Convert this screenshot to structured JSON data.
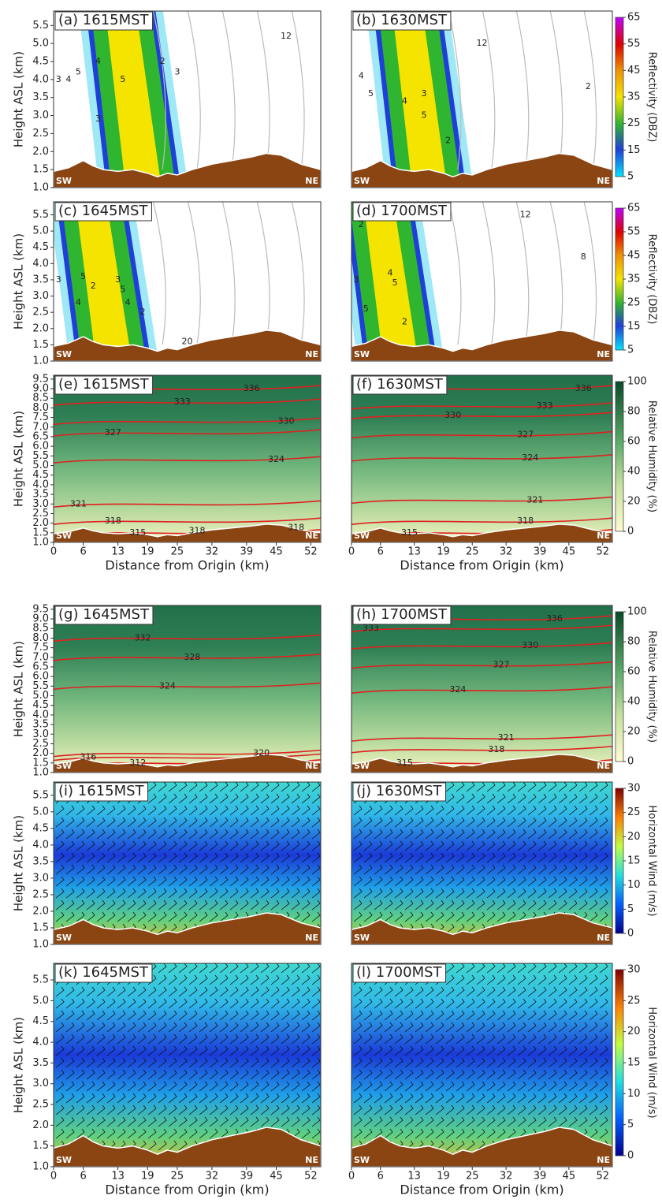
{
  "terrain": {
    "x": [
      0,
      3,
      6,
      8,
      10,
      13,
      16,
      19,
      21,
      23,
      25,
      28,
      32,
      36,
      40,
      43,
      46,
      50,
      54
    ],
    "y": [
      1.45,
      1.55,
      1.75,
      1.6,
      1.5,
      1.45,
      1.5,
      1.4,
      1.3,
      1.4,
      1.35,
      1.5,
      1.65,
      1.75,
      1.85,
      1.95,
      1.9,
      1.65,
      1.5
    ]
  },
  "chart_data": [
    {
      "type": "contour",
      "field": "reflectivity",
      "title": "(a) 1615MST",
      "y_label": "Height ASL (km)",
      "xlim": [
        0,
        54
      ],
      "ylim": [
        1,
        5.9
      ],
      "yticks": [
        {
          "value": 1,
          "label": "1.0"
        },
        1.5,
        {
          "value": 2,
          "label": "2.0"
        },
        2.5,
        {
          "value": 3,
          "label": "3.0"
        },
        3.5,
        {
          "value": 4,
          "label": "4.0"
        },
        4.5,
        {
          "value": 5,
          "label": "5.0"
        },
        5.5
      ],
      "corner_labels": [
        "SW",
        "NE"
      ],
      "contour_labels": [
        {
          "value": 3,
          "x": 1,
          "y": 4.0
        },
        {
          "value": 4,
          "x": 3,
          "y": 4.0
        },
        {
          "value": 5,
          "x": 5,
          "y": 4.2
        },
        {
          "value": 4,
          "x": 9,
          "y": 4.5
        },
        {
          "value": 5,
          "x": 14,
          "y": 4.0
        },
        {
          "value": 3,
          "x": 9,
          "y": 2.9
        },
        {
          "value": 2,
          "x": 22,
          "y": 4.5
        },
        {
          "value": 3,
          "x": 25,
          "y": 4.2
        },
        {
          "value": 12,
          "x": 47,
          "y": 5.2
        }
      ]
    },
    {
      "type": "contour",
      "field": "reflectivity",
      "title": "(b) 1630MST",
      "xlim": [
        0,
        54
      ],
      "ylim": [
        1,
        5.9
      ],
      "corner_labels": [
        "SW",
        "NE"
      ],
      "contour_labels": [
        {
          "value": 4,
          "x": 2,
          "y": 4.1
        },
        {
          "value": 5,
          "x": 4,
          "y": 3.6
        },
        {
          "value": 4,
          "x": 11,
          "y": 3.4
        },
        {
          "value": 3,
          "x": 15,
          "y": 3.6
        },
        {
          "value": 5,
          "x": 15,
          "y": 3.0
        },
        {
          "value": 2,
          "x": 20,
          "y": 2.3
        },
        {
          "value": 2,
          "x": 49,
          "y": 3.8
        },
        {
          "value": 12,
          "x": 27,
          "y": 5.0
        }
      ],
      "colorbar": {
        "label": "Reflectivity (DBZ)",
        "lim": [
          5,
          65
        ],
        "ticks": [
          5,
          15,
          25,
          35,
          45,
          55,
          65
        ]
      }
    },
    {
      "type": "contour",
      "field": "reflectivity",
      "title": "(c) 1645MST",
      "y_label": "Height ASL (km)",
      "xlim": [
        0,
        54
      ],
      "ylim": [
        1,
        5.9
      ],
      "yticks": [
        {
          "value": 1,
          "label": "1.0"
        },
        1.5,
        {
          "value": 2,
          "label": "2.0"
        },
        2.5,
        {
          "value": 3,
          "label": "3.0"
        },
        3.5,
        {
          "value": 4,
          "label": "4.0"
        },
        4.5,
        {
          "value": 5,
          "label": "5.0"
        },
        5.5
      ],
      "corner_labels": [
        "SW",
        "NE"
      ],
      "contour_labels": [
        {
          "value": 3,
          "x": 1,
          "y": 3.5
        },
        {
          "value": 5,
          "x": 6,
          "y": 3.6
        },
        {
          "value": 4,
          "x": 5,
          "y": 2.8
        },
        {
          "value": 2,
          "x": 8,
          "y": 3.3
        },
        {
          "value": 3,
          "x": 13,
          "y": 3.5
        },
        {
          "value": 5,
          "x": 14,
          "y": 3.2
        },
        {
          "value": 4,
          "x": 15,
          "y": 2.8
        },
        {
          "value": 2,
          "x": 18,
          "y": 2.5
        },
        {
          "value": 20,
          "x": 27,
          "y": 1.6
        }
      ]
    },
    {
      "type": "contour",
      "field": "reflectivity",
      "title": "(d) 1700MST",
      "xlim": [
        0,
        54
      ],
      "ylim": [
        1,
        5.9
      ],
      "corner_labels": [
        "SW",
        "NE"
      ],
      "contour_labels": [
        {
          "value": 2,
          "x": 2,
          "y": 5.2
        },
        {
          "value": 3,
          "x": 1,
          "y": 3.5
        },
        {
          "value": 5,
          "x": 3,
          "y": 2.6
        },
        {
          "value": 4,
          "x": 8,
          "y": 3.7
        },
        {
          "value": 5,
          "x": 9,
          "y": 3.4
        },
        {
          "value": 2,
          "x": 11,
          "y": 2.2
        },
        {
          "value": 12,
          "x": 36,
          "y": 5.5
        },
        {
          "value": 8,
          "x": 48,
          "y": 4.2
        }
      ],
      "colorbar": {
        "label": "Reflectivity (DBZ)",
        "lim": [
          5,
          65
        ],
        "ticks": [
          5,
          15,
          25,
          35,
          45,
          55,
          65
        ]
      }
    },
    {
      "type": "contour",
      "field": "rh",
      "title": "(e) 1615MST",
      "y_label": "Height ASL (km)",
      "x_label": "Distance from Origin (km)",
      "xlim": [
        0,
        54
      ],
      "ylim": [
        1,
        9.7
      ],
      "yticks": [
        {
          "value": 1,
          "label": "1.0"
        },
        1.5,
        {
          "value": 2,
          "label": "2.0"
        },
        2.5,
        {
          "value": 3,
          "label": "3.0"
        },
        3.5,
        {
          "value": 4,
          "label": "4.0"
        },
        4.5,
        {
          "value": 5,
          "label": "5.0"
        },
        5.5,
        {
          "value": 6,
          "label": "6.0"
        },
        6.5,
        {
          "value": 7,
          "label": "7.0"
        },
        7.5,
        {
          "value": 8,
          "label": "8.0"
        },
        8.5,
        {
          "value": 9,
          "label": "9.0"
        },
        9.5
      ],
      "xticks": [
        0,
        6,
        13,
        19,
        25,
        32,
        39,
        45,
        52
      ],
      "corner_labels": [
        "SW",
        "NE"
      ],
      "contour_labels": [
        {
          "value": 336,
          "x": 40,
          "y": 9.0
        },
        {
          "value": 333,
          "x": 26,
          "y": 8.3
        },
        {
          "value": 330,
          "x": 47,
          "y": 7.3
        },
        {
          "value": 327,
          "x": 12,
          "y": 6.7
        },
        {
          "value": 324,
          "x": 45,
          "y": 5.3
        },
        {
          "value": 321,
          "x": 5,
          "y": 3.0
        },
        {
          "value": 318,
          "x": 12,
          "y": 2.1
        },
        {
          "value": 315,
          "x": 17,
          "y": 1.5
        },
        {
          "value": 318,
          "x": 29,
          "y": 1.6
        },
        {
          "value": 318,
          "x": 49,
          "y": 1.75
        }
      ]
    },
    {
      "type": "contour",
      "field": "rh",
      "title": "(f) 1630MST",
      "x_label": "Distance from Origin (km)",
      "xlim": [
        0,
        54
      ],
      "ylim": [
        1,
        9.7
      ],
      "xticks": [
        0,
        6,
        13,
        19,
        25,
        32,
        39,
        45,
        52
      ],
      "corner_labels": [
        "SW",
        "NE"
      ],
      "contour_labels": [
        {
          "value": 336,
          "x": 48,
          "y": 9.0
        },
        {
          "value": 333,
          "x": 40,
          "y": 8.1
        },
        {
          "value": 330,
          "x": 21,
          "y": 7.6
        },
        {
          "value": 327,
          "x": 36,
          "y": 6.6
        },
        {
          "value": 324,
          "x": 37,
          "y": 5.4
        },
        {
          "value": 321,
          "x": 38,
          "y": 3.2
        },
        {
          "value": 318,
          "x": 36,
          "y": 2.1
        },
        {
          "value": 315,
          "x": 12,
          "y": 1.5
        }
      ],
      "colorbar": {
        "label": "Relative Humidity (%)",
        "lim": [
          0,
          100
        ],
        "ticks": [
          0,
          20,
          40,
          60,
          80,
          100
        ]
      }
    },
    {
      "type": "contour",
      "field": "rh",
      "title": "(g) 1645MST",
      "y_label": "Height ASL (km)",
      "xlim": [
        0,
        54
      ],
      "ylim": [
        1,
        9.7
      ],
      "yticks": [
        {
          "value": 1,
          "label": "1.0"
        },
        1.5,
        {
          "value": 2,
          "label": "2.0"
        },
        2.5,
        {
          "value": 3,
          "label": "3.0"
        },
        3.5,
        {
          "value": 4,
          "label": "4.0"
        },
        4.5,
        {
          "value": 5,
          "label": "5.0"
        },
        5.5,
        {
          "value": 6,
          "label": "6.0"
        },
        6.5,
        {
          "value": 7,
          "label": "7.0"
        },
        7.5,
        {
          "value": 8,
          "label": "8.0"
        },
        8.5,
        {
          "value": 9,
          "label": "9.0"
        },
        9.5
      ],
      "corner_labels": [
        "SW",
        "NE"
      ],
      "contour_labels": [
        {
          "value": 332,
          "x": 18,
          "y": 8.0
        },
        {
          "value": 328,
          "x": 28,
          "y": 7.0
        },
        {
          "value": 324,
          "x": 23,
          "y": 5.5
        },
        {
          "value": 320,
          "x": 42,
          "y": 2.0
        },
        {
          "value": 316,
          "x": 7,
          "y": 1.8
        },
        {
          "value": 312,
          "x": 17,
          "y": 1.5
        }
      ]
    },
    {
      "type": "contour",
      "field": "rh",
      "title": "(h) 1700MST",
      "xlim": [
        0,
        54
      ],
      "ylim": [
        1,
        9.7
      ],
      "corner_labels": [
        "SW",
        "NE"
      ],
      "contour_labels": [
        {
          "value": 336,
          "x": 42,
          "y": 9.0
        },
        {
          "value": 333,
          "x": 4,
          "y": 8.5
        },
        {
          "value": 330,
          "x": 37,
          "y": 7.6
        },
        {
          "value": 327,
          "x": 31,
          "y": 6.6
        },
        {
          "value": 324,
          "x": 22,
          "y": 5.3
        },
        {
          "value": 321,
          "x": 32,
          "y": 2.8
        },
        {
          "value": 318,
          "x": 30,
          "y": 2.2
        },
        {
          "value": 315,
          "x": 11,
          "y": 1.5
        }
      ],
      "colorbar": {
        "label": "Relative Humidity (%)",
        "lim": [
          0,
          100
        ],
        "ticks": [
          0,
          20,
          40,
          60,
          80,
          100
        ]
      }
    },
    {
      "type": "contour",
      "field": "wind",
      "title": "(i) 1615MST",
      "y_label": "Height ASL (km)",
      "xlim": [
        0,
        54
      ],
      "ylim": [
        1,
        5.9
      ],
      "yticks": [
        {
          "value": 1,
          "label": "1.0"
        },
        1.5,
        {
          "value": 2,
          "label": "2.0"
        },
        2.5,
        {
          "value": 3,
          "label": "3.0"
        },
        3.5,
        {
          "value": 4,
          "label": "4.0"
        },
        4.5,
        {
          "value": 5,
          "label": "5.0"
        },
        5.5
      ],
      "corner_labels": [
        "SW",
        "NE"
      ]
    },
    {
      "type": "contour",
      "field": "wind",
      "title": "(j) 1630MST",
      "xlim": [
        0,
        54
      ],
      "ylim": [
        1,
        5.9
      ],
      "corner_labels": [
        "SW",
        "NE"
      ],
      "colorbar": {
        "label": "Horizontal Wind (m/s)",
        "lim": [
          0,
          30
        ],
        "ticks": [
          0,
          5,
          10,
          15,
          20,
          25,
          30
        ]
      }
    },
    {
      "type": "contour",
      "field": "wind",
      "title": "(k) 1645MST",
      "y_label": "Height ASL (km)",
      "x_label": "Distance from Origin (km)",
      "xlim": [
        0,
        54
      ],
      "ylim": [
        1,
        5.9
      ],
      "yticks": [
        {
          "value": 1,
          "label": "1.0"
        },
        1.5,
        {
          "value": 2,
          "label": "2.0"
        },
        2.5,
        {
          "value": 3,
          "label": "3.0"
        },
        3.5,
        {
          "value": 4,
          "label": "4.0"
        },
        4.5,
        {
          "value": 5,
          "label": "5.0"
        },
        5.5
      ],
      "xticks": [
        0,
        6,
        13,
        19,
        25,
        32,
        39,
        45,
        52
      ],
      "corner_labels": [
        "SW",
        "NE"
      ]
    },
    {
      "type": "contour",
      "field": "wind",
      "title": "(l) 1700MST",
      "x_label": "Distance from Origin (km)",
      "xlim": [
        0,
        54
      ],
      "ylim": [
        1,
        5.9
      ],
      "xticks": [
        0,
        6,
        13,
        19,
        25,
        32,
        39,
        45,
        52
      ],
      "corner_labels": [
        "SW",
        "NE"
      ],
      "colorbar": {
        "label": "Horizontal Wind (m/s)",
        "lim": [
          0,
          30
        ],
        "ticks": [
          0,
          5,
          10,
          15,
          20,
          25,
          30
        ]
      }
    }
  ]
}
